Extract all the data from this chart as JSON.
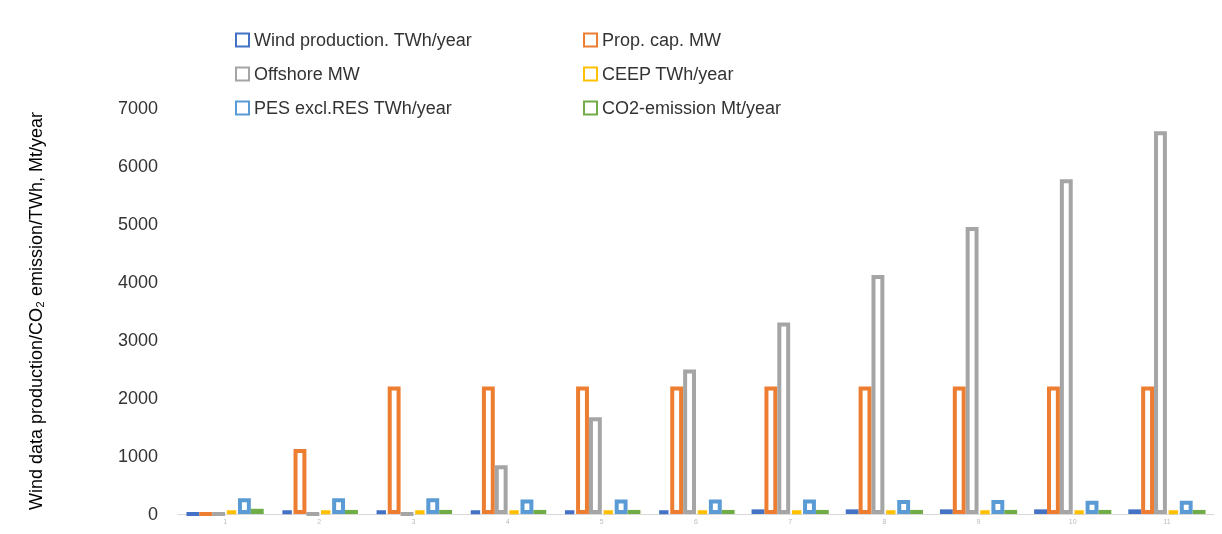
{
  "chart_data": {
    "type": "bar",
    "ylabel": "Wind data production/CO₂ emission/TWh, Mt/year",
    "categories": [
      "1",
      "2",
      "3",
      "4",
      "5",
      "6",
      "7",
      "8",
      "9",
      "10",
      "11"
    ],
    "series": [
      {
        "name": "Wind production. TWh/year",
        "color": "#4472c4",
        "values": [
          0,
          60,
          60,
          60,
          60,
          60,
          80,
          80,
          80,
          80,
          80
        ]
      },
      {
        "name": "Prop. cap. MW",
        "color": "#ed7d31",
        "values": [
          0,
          1120,
          2200,
          2200,
          2200,
          2200,
          2200,
          2200,
          2200,
          2200,
          2200
        ]
      },
      {
        "name": "Offshore MW",
        "color": "#a5a5a5",
        "values": [
          0,
          0,
          0,
          840,
          1670,
          2490,
          3300,
          4120,
          4950,
          5770,
          6600
        ]
      },
      {
        "name": "CEEP TWh/year",
        "color": "#ffc000",
        "values": [
          60,
          60,
          60,
          60,
          60,
          60,
          60,
          60,
          60,
          60,
          60
        ]
      },
      {
        "name": "PES excl.RES TWh/year",
        "color": "#5b9bd5",
        "values": [
          270,
          270,
          270,
          250,
          250,
          250,
          250,
          240,
          240,
          230,
          230
        ]
      },
      {
        "name": "CO2-emission Mt/year",
        "color": "#70ad47",
        "values": [
          90,
          70,
          70,
          70,
          70,
          70,
          70,
          70,
          70,
          70,
          70
        ]
      }
    ],
    "ylim": [
      0,
      7000
    ],
    "yticks": [
      0,
      1000,
      2000,
      3000,
      4000,
      5000,
      6000,
      7000
    ],
    "grid": false,
    "legend": "top"
  }
}
